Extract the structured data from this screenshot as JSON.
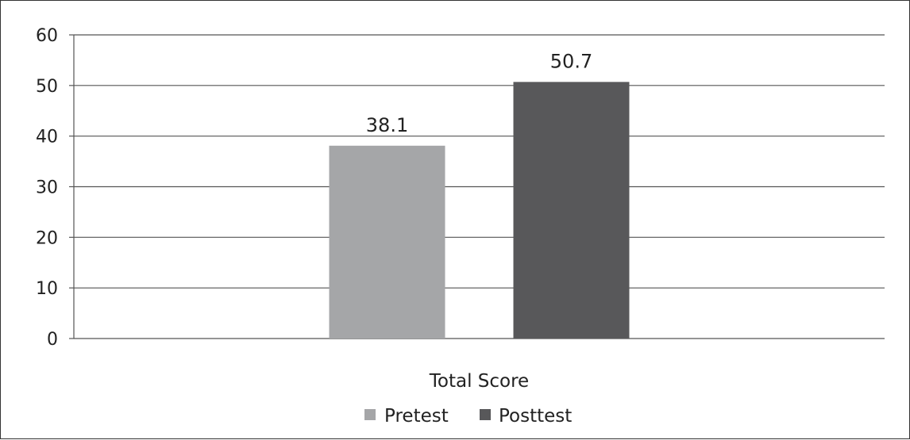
{
  "chart_data": {
    "type": "bar",
    "categories": [
      "Total Score"
    ],
    "series": [
      {
        "name": "Pretest",
        "values": [
          38.1
        ],
        "label": "38.1"
      },
      {
        "name": "Posttest",
        "values": [
          50.7
        ],
        "label": "50.7"
      }
    ],
    "colors": [
      "#a5a6a8",
      "#58585a"
    ],
    "y_ticks": [
      "0",
      "10",
      "20",
      "30",
      "40",
      "50",
      "60"
    ],
    "ylim": [
      0,
      60
    ],
    "grid": true,
    "legend": "bottom-center",
    "title": "",
    "xlabel": "",
    "ylabel": ""
  }
}
